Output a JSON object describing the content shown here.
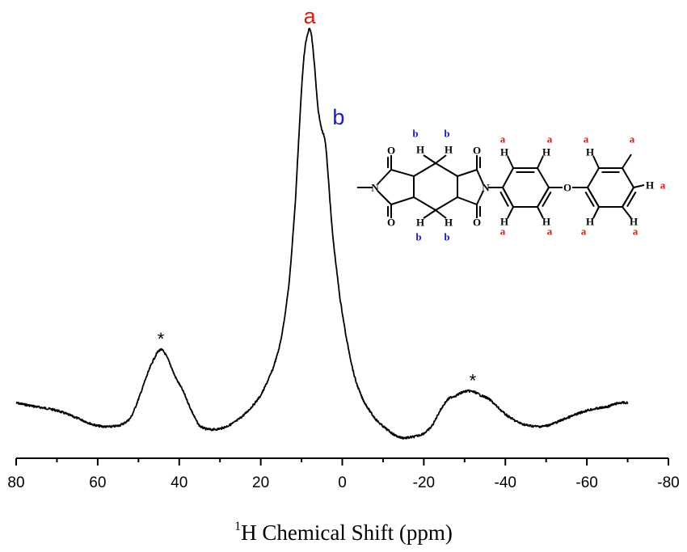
{
  "chart_data": {
    "type": "line",
    "title": "",
    "xlabel_sup": "1",
    "xlabel_main": "H Chemical Shift (ppm)",
    "ylabel": "",
    "xlim": [
      80,
      -80
    ],
    "x_reversed": true,
    "x_ticks": [
      80,
      60,
      40,
      20,
      0,
      -20,
      -40,
      -60,
      -80
    ],
    "y_axis_visible": false,
    "grid": false,
    "series": [
      {
        "color": "#000000",
        "x": [
          80,
          75,
          70,
          65,
          60,
          55,
          52,
          50,
          48,
          46,
          44.5,
          43,
          41,
          39,
          37,
          35,
          32,
          28,
          24,
          20,
          17,
          15,
          13,
          11.5,
          10.5,
          9.5,
          8.5,
          7.8,
          7,
          6,
          5,
          4.2,
          3.5,
          2.5,
          1.5,
          0.5,
          -1,
          -3,
          -5,
          -8,
          -11,
          -14,
          -17,
          -20,
          -22,
          -24,
          -26,
          -28,
          -30,
          -32,
          -34,
          -36,
          -38,
          -40,
          -43,
          -46,
          -50,
          -55,
          -60,
          -65,
          -68,
          -70
        ],
        "y": [
          0.02,
          0.01,
          0.0,
          -0.02,
          -0.04,
          -0.04,
          -0.02,
          0.03,
          0.09,
          0.14,
          0.16,
          0.14,
          0.09,
          0.05,
          0.0,
          -0.04,
          -0.05,
          -0.04,
          -0.01,
          0.04,
          0.11,
          0.19,
          0.34,
          0.55,
          0.75,
          0.92,
          0.99,
          1.0,
          0.93,
          0.8,
          0.74,
          0.71,
          0.62,
          0.48,
          0.38,
          0.29,
          0.19,
          0.09,
          0.03,
          -0.02,
          -0.05,
          -0.07,
          -0.07,
          -0.06,
          -0.04,
          0.0,
          0.03,
          0.04,
          0.05,
          0.05,
          0.04,
          0.03,
          0.01,
          -0.01,
          -0.03,
          -0.04,
          -0.04,
          -0.02,
          0.0,
          0.01,
          0.02,
          0.02
        ]
      }
    ],
    "annotations": [
      {
        "text": "a",
        "x": 8,
        "y": 1.0,
        "color": "#e8140a"
      },
      {
        "text": "b",
        "x": 2.5,
        "y": 0.74,
        "color": "#1a1ad6"
      },
      {
        "text": "*",
        "x": 44.5,
        "y": 0.16,
        "color": "#000000"
      },
      {
        "text": "*",
        "x": -32,
        "y": 0.05,
        "color": "#000000"
      }
    ],
    "structure_labels": {
      "a": "a",
      "b": "b",
      "a_color": "#e8140a",
      "b_color": "#1a1ad6",
      "atoms": {
        "H": "H",
        "O": "O",
        "N": "N"
      }
    }
  }
}
